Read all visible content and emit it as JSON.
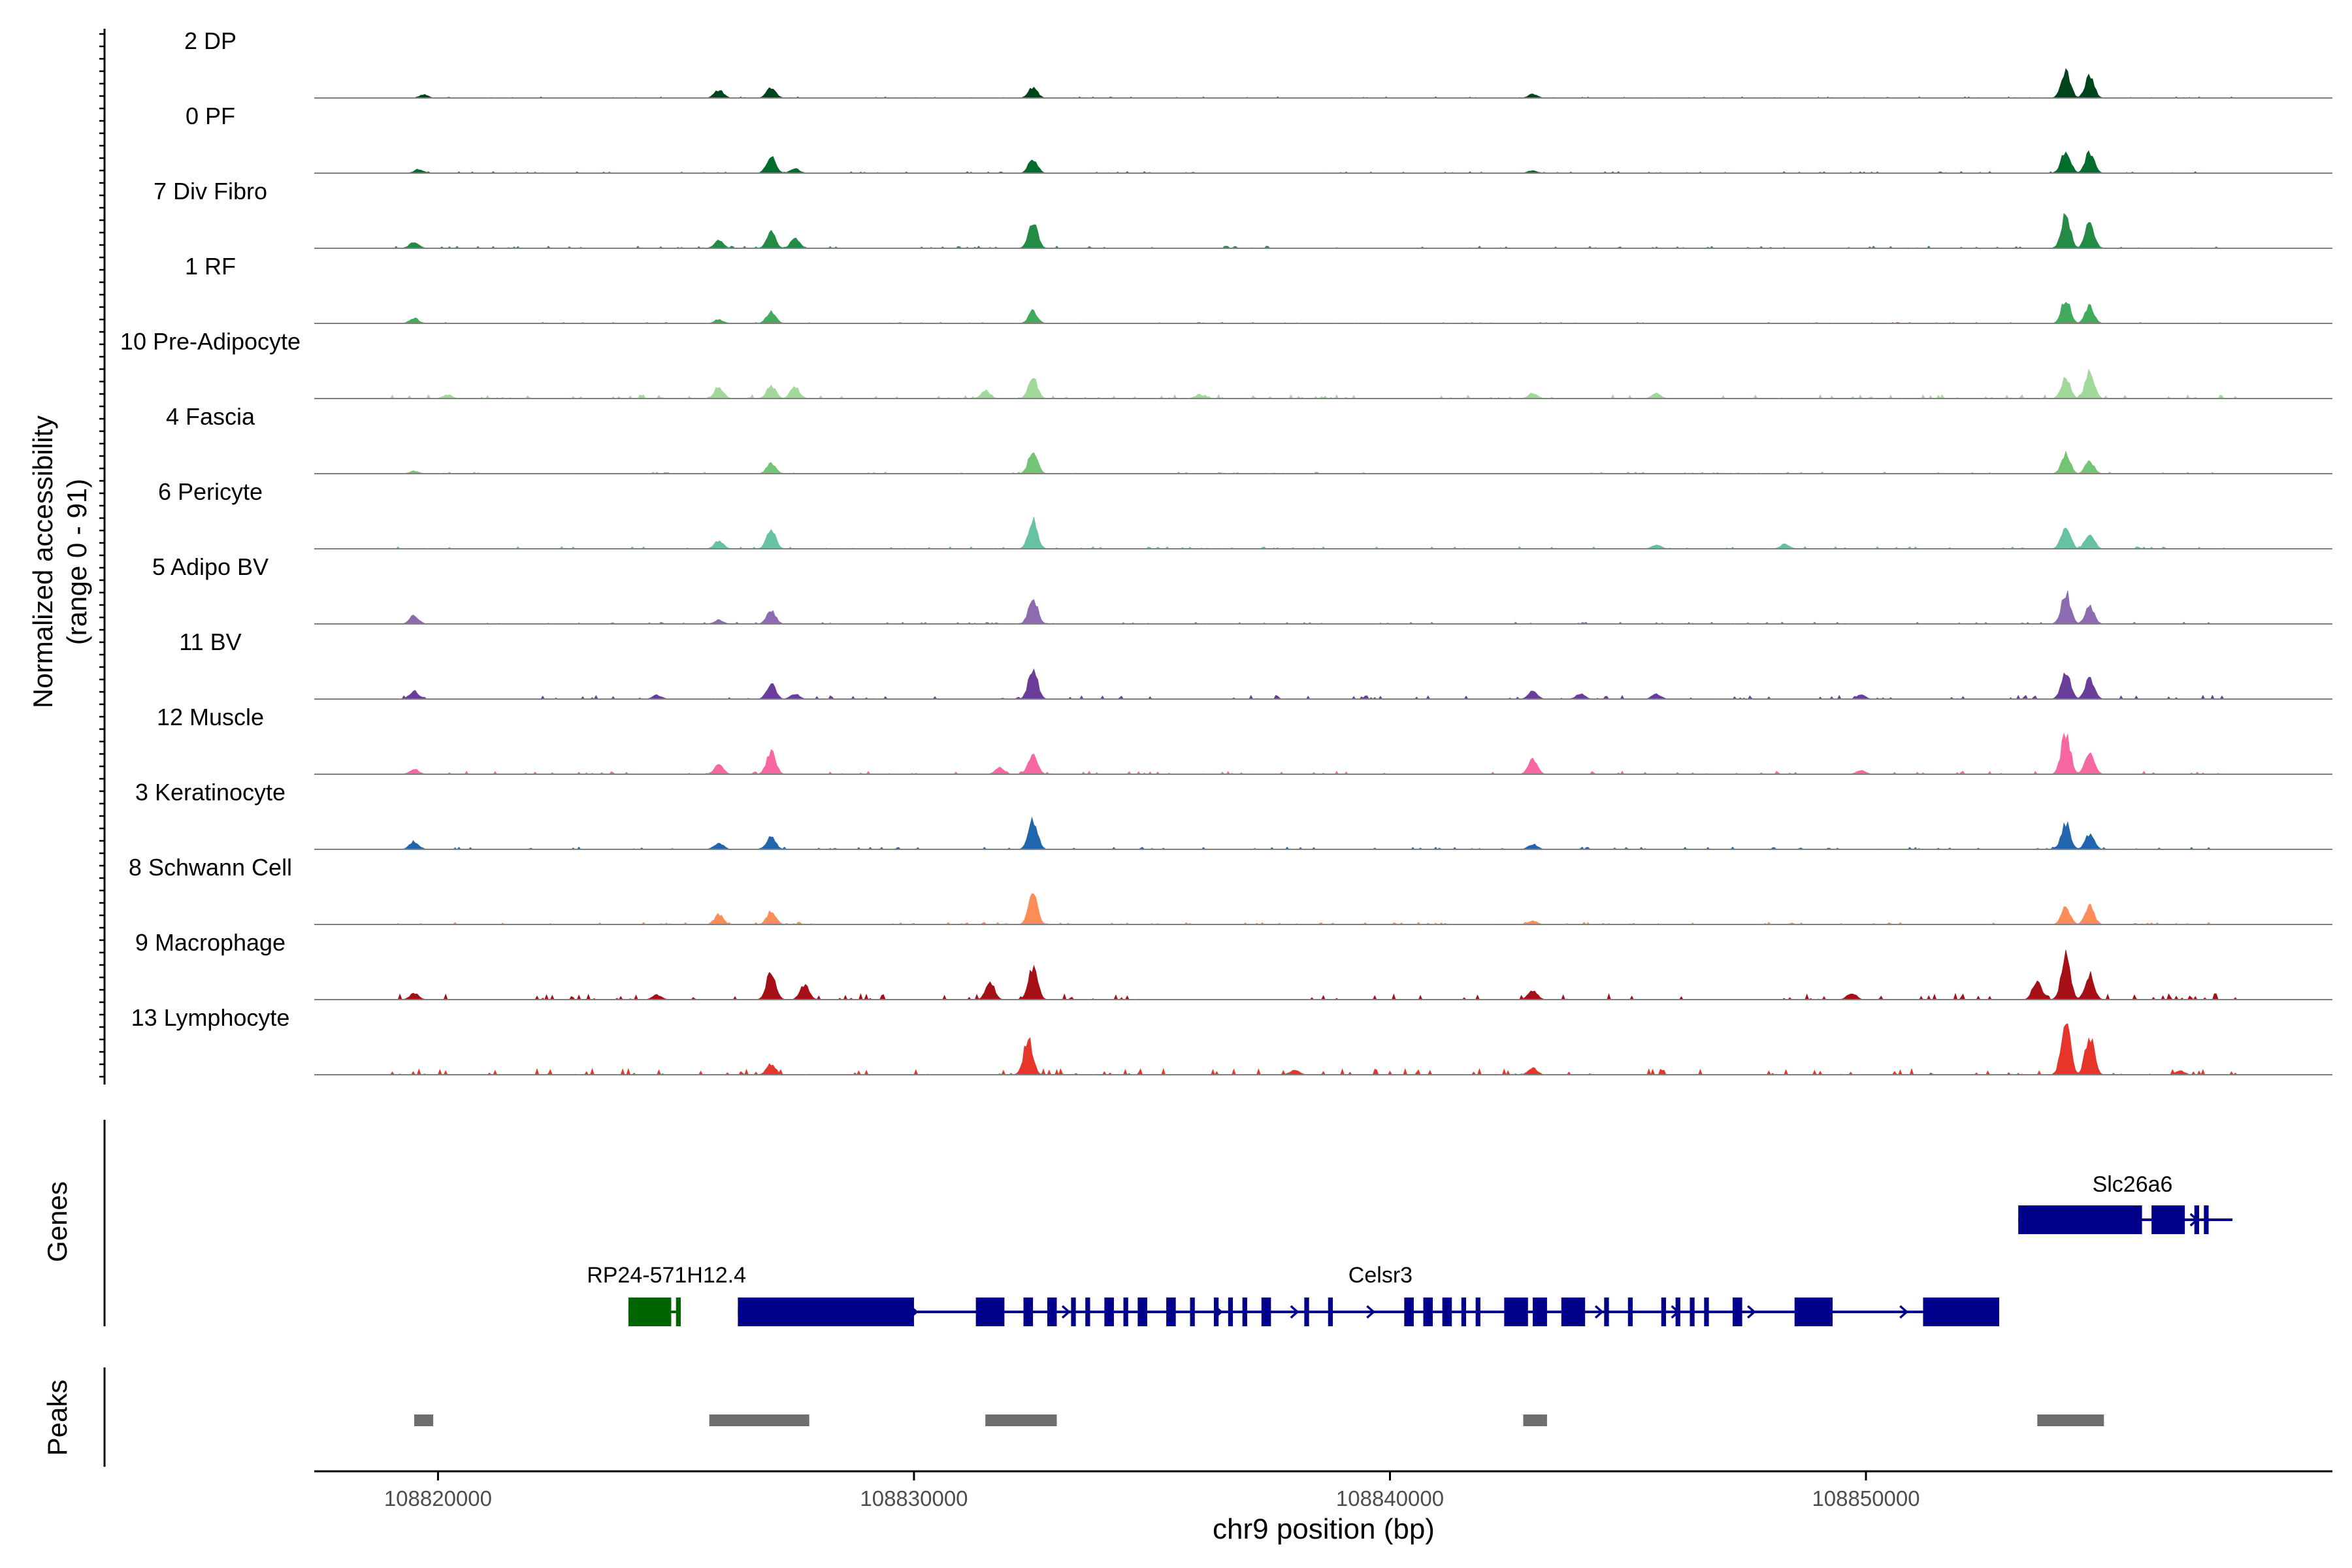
{
  "chart_data": {
    "type": "area",
    "title": "",
    "y_axis_title": [
      "Normalized accessibility",
      "(range 0 - 91)"
    ],
    "ylim": [
      0,
      91
    ],
    "x_axis_title": "chr9 position (bp)",
    "xlim": [
      108817400,
      108859800
    ],
    "x_ticks": [
      108820000,
      108830000,
      108840000,
      108850000
    ],
    "x_tick_labels": [
      "108820000",
      "108830000",
      "108840000",
      "108850000"
    ],
    "track_labels": {
      "genes": "Genes",
      "peaks": "Peaks"
    },
    "peak_radius_bp": 170,
    "tracks": [
      {
        "name": "2 DP",
        "color": "#00441b",
        "peaks": [
          [
            108819700,
            5
          ],
          [
            108825900,
            12
          ],
          [
            108827000,
            16
          ],
          [
            108832500,
            16
          ],
          [
            108843000,
            6
          ],
          [
            108854200,
            42
          ],
          [
            108854700,
            33
          ]
        ],
        "noise": [
          [
            108815000,
            108858000,
            0,
            1.5
          ]
        ]
      },
      {
        "name": "0 PF",
        "color": "#006d2c",
        "peaks": [
          [
            108819600,
            6
          ],
          [
            108827000,
            26
          ],
          [
            108827500,
            7
          ],
          [
            108832500,
            22
          ],
          [
            108843000,
            4
          ],
          [
            108854200,
            36
          ],
          [
            108854700,
            32
          ]
        ],
        "noise": [
          [
            108815000,
            108858000,
            0,
            2
          ]
        ]
      },
      {
        "name": "7 Div Fibro",
        "color": "#238b45",
        "peaks": [
          [
            108819500,
            10
          ],
          [
            108825900,
            12
          ],
          [
            108827000,
            24
          ],
          [
            108827500,
            14
          ],
          [
            108832500,
            42
          ],
          [
            108854200,
            52
          ],
          [
            108854700,
            38
          ]
        ],
        "noise": [
          [
            108815000,
            108858000,
            0,
            3
          ]
        ]
      },
      {
        "name": "1 RF",
        "color": "#41ab5d",
        "peaks": [
          [
            108819500,
            8
          ],
          [
            108825900,
            6
          ],
          [
            108827000,
            18
          ],
          [
            108832500,
            19
          ],
          [
            108854200,
            38
          ],
          [
            108854700,
            26
          ]
        ],
        "noise": [
          [
            108815000,
            108858000,
            0,
            1.5
          ]
        ]
      },
      {
        "name": "10 Pre-Adipocyte",
        "color": "#a1d99b",
        "peaks": [
          [
            108820200,
            6
          ],
          [
            108825900,
            18
          ],
          [
            108827000,
            20
          ],
          [
            108827500,
            18
          ],
          [
            108831500,
            12
          ],
          [
            108832500,
            32
          ],
          [
            108836000,
            6
          ],
          [
            108843000,
            8
          ],
          [
            108845600,
            8
          ],
          [
            108854200,
            32
          ],
          [
            108854700,
            42
          ]
        ],
        "noise": [
          [
            108815000,
            108858000,
            0,
            5
          ]
        ]
      },
      {
        "name": "4 Fascia",
        "color": "#74c476",
        "peaks": [
          [
            108819500,
            4
          ],
          [
            108827000,
            16
          ],
          [
            108832500,
            34
          ],
          [
            108854200,
            30
          ],
          [
            108854700,
            19
          ]
        ],
        "noise": [
          [
            108815000,
            108858000,
            0,
            2
          ]
        ]
      },
      {
        "name": "6 Pericyte",
        "color": "#66c2a4",
        "peaks": [
          [
            108825900,
            12
          ],
          [
            108827000,
            28
          ],
          [
            108832500,
            44
          ],
          [
            108845600,
            6
          ],
          [
            108848300,
            7
          ],
          [
            108854200,
            36
          ],
          [
            108854700,
            25
          ]
        ],
        "noise": [
          [
            108815000,
            108858000,
            0,
            3
          ]
        ]
      },
      {
        "name": "5 Adipo BV",
        "color": "#8c6bb1",
        "peaks": [
          [
            108819500,
            13
          ],
          [
            108825900,
            6
          ],
          [
            108827000,
            20
          ],
          [
            108832500,
            40
          ],
          [
            108854200,
            49
          ],
          [
            108854700,
            27
          ]
        ],
        "noise": [
          [
            108815000,
            108858000,
            0,
            2.5
          ]
        ]
      },
      {
        "name": "11 BV",
        "color": "#6a3d9a",
        "peaks": [
          [
            108819500,
            12
          ],
          [
            108824600,
            6
          ],
          [
            108827000,
            24
          ],
          [
            108827500,
            8
          ],
          [
            108832500,
            48
          ],
          [
            108843000,
            12
          ],
          [
            108844000,
            8
          ],
          [
            108845600,
            8
          ],
          [
            108849900,
            6
          ],
          [
            108854200,
            44
          ],
          [
            108854700,
            31
          ]
        ],
        "noise": [
          [
            108815000,
            108858000,
            0,
            5
          ]
        ]
      },
      {
        "name": "12 Muscle",
        "color": "#f768a1",
        "peaks": [
          [
            108819500,
            8
          ],
          [
            108825900,
            14
          ],
          [
            108827000,
            34
          ],
          [
            108831800,
            10
          ],
          [
            108832500,
            30
          ],
          [
            108843000,
            22
          ],
          [
            108849900,
            6
          ],
          [
            108854200,
            64
          ],
          [
            108854700,
            38
          ]
        ],
        "noise": [
          [
            108815000,
            108858000,
            0,
            4
          ]
        ]
      },
      {
        "name": "3 Keratinocyte",
        "color": "#2166ac",
        "peaks": [
          [
            108819500,
            12
          ],
          [
            108825900,
            10
          ],
          [
            108827000,
            20
          ],
          [
            108832500,
            44
          ],
          [
            108843000,
            8
          ],
          [
            108854200,
            40
          ],
          [
            108854700,
            23
          ]
        ],
        "noise": [
          [
            108815000,
            108858000,
            0,
            3
          ]
        ]
      },
      {
        "name": "8 Schwann Cell",
        "color": "#fc8d59",
        "peaks": [
          [
            108825900,
            15
          ],
          [
            108827000,
            20
          ],
          [
            108832500,
            44
          ],
          [
            108843000,
            6
          ],
          [
            108854200,
            27
          ],
          [
            108854700,
            29
          ]
        ],
        "noise": [
          [
            108815000,
            108858000,
            0,
            3
          ]
        ]
      },
      {
        "name": "9 Macrophage",
        "color": "#a50f15",
        "peaks": [
          [
            108819500,
            10
          ],
          [
            108824600,
            7
          ],
          [
            108827000,
            44
          ],
          [
            108827700,
            22
          ],
          [
            108831600,
            26
          ],
          [
            108832500,
            50
          ],
          [
            108843000,
            14
          ],
          [
            108849700,
            10
          ],
          [
            108853600,
            30
          ],
          [
            108854200,
            70
          ],
          [
            108854700,
            40
          ]
        ],
        "noise": [
          [
            108815000,
            108858000,
            0,
            8
          ]
        ]
      },
      {
        "name": "13 Lymphocyte",
        "color": "#e7352c",
        "peaks": [
          [
            108827000,
            16
          ],
          [
            108832400,
            55
          ],
          [
            108854200,
            82
          ],
          [
            108854700,
            60
          ],
          [
            108843000,
            10
          ],
          [
            108838000,
            8
          ],
          [
            108856600,
            6
          ]
        ],
        "noise": [
          [
            108815000,
            108858000,
            0,
            8
          ]
        ]
      }
    ],
    "genes": [
      {
        "name": "Slc26a6",
        "color": "#00008b",
        "strand": "+",
        "row": 0,
        "start": 108853200,
        "end": 108857700,
        "exons": [
          [
            108853200,
            108855800
          ],
          [
            108856000,
            108856700
          ],
          [
            108856900,
            108857000
          ],
          [
            108857100,
            108857200
          ]
        ]
      },
      {
        "name": "RP24-571H12.4",
        "color": "#006400",
        "strand": "+",
        "row": 1,
        "start": 108824000,
        "end": 108825100,
        "exons": [
          [
            108824000,
            108824900
          ],
          [
            108825000,
            108825100
          ]
        ]
      },
      {
        "name": "Celsr3",
        "color": "#00008b",
        "strand": "+",
        "row": 1,
        "start": 108826300,
        "end": 108852800,
        "exons": [
          [
            108826300,
            108830000
          ],
          [
            108831300,
            108831900
          ],
          [
            108832300,
            108832500
          ],
          [
            108832800,
            108833000
          ],
          [
            108833300,
            108833400
          ],
          [
            108833600,
            108833700
          ],
          [
            108834000,
            108834200
          ],
          [
            108834400,
            108834500
          ],
          [
            108834700,
            108834900
          ],
          [
            108835300,
            108835500
          ],
          [
            108835800,
            108835900
          ],
          [
            108836300,
            108836400
          ],
          [
            108836600,
            108836700
          ],
          [
            108836900,
            108837000
          ],
          [
            108837300,
            108837500
          ],
          [
            108838200,
            108838300
          ],
          [
            108838700,
            108838800
          ],
          [
            108840300,
            108840500
          ],
          [
            108840700,
            108840900
          ],
          [
            108841100,
            108841300
          ],
          [
            108841500,
            108841600
          ],
          [
            108841800,
            108841900
          ],
          [
            108842400,
            108842900
          ],
          [
            108843000,
            108843300
          ],
          [
            108843600,
            108844100
          ],
          [
            108844500,
            108844600
          ],
          [
            108845000,
            108845100
          ],
          [
            108845700,
            108845800
          ],
          [
            108846000,
            108846100
          ],
          [
            108846300,
            108846400
          ],
          [
            108846600,
            108846700
          ],
          [
            108847200,
            108847400
          ],
          [
            108848500,
            108849300
          ],
          [
            108851200,
            108852800
          ]
        ]
      }
    ],
    "peaks": [
      [
        108819500,
        108819900
      ],
      [
        108825700,
        108827800
      ],
      [
        108831500,
        108833000
      ],
      [
        108842800,
        108843300
      ],
      [
        108853600,
        108855000
      ]
    ]
  }
}
